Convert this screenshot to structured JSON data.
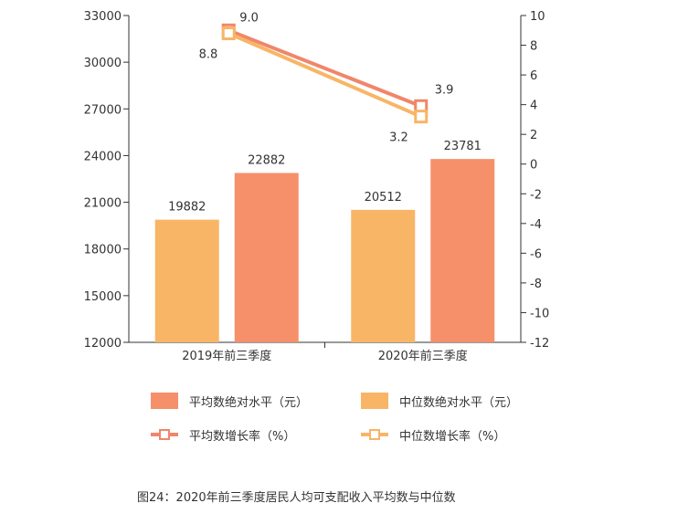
{
  "chart_data": {
    "type": "bar",
    "categories": [
      "2019年前三季度",
      "2020年前三季度"
    ],
    "y_left": {
      "min": 12000,
      "max": 33000,
      "ticks": [
        12000,
        15000,
        18000,
        21000,
        24000,
        27000,
        30000,
        33000
      ]
    },
    "y_right": {
      "min": -12,
      "max": 10,
      "ticks": [
        -12,
        -10,
        -8,
        -6,
        -4,
        -2,
        0,
        2,
        4,
        6,
        8,
        10
      ]
    },
    "bar_series": [
      {
        "name": "中位数绝对水平（元）",
        "color": "#f8b566",
        "values": [
          19882,
          20512
        ],
        "labels": [
          "19882",
          "20512"
        ]
      },
      {
        "name": "平均数绝对水平（元）",
        "color": "#f5906a",
        "values": [
          22882,
          23781
        ],
        "labels": [
          "22882",
          "23781"
        ]
      }
    ],
    "line_series": [
      {
        "name": "平均数增长率（%）",
        "color": "#f0866a",
        "values": [
          9.0,
          3.9
        ],
        "labels": [
          "9.0",
          "3.9"
        ]
      },
      {
        "name": "中位数增长率（%）",
        "color": "#f8b566",
        "values": [
          8.8,
          3.2
        ],
        "labels": [
          "8.8",
          "3.2"
        ]
      }
    ],
    "legend": [
      {
        "name": "平均数绝对水平（元）",
        "kind": "bar",
        "color": "#f5906a"
      },
      {
        "name": "中位数绝对水平（元）",
        "kind": "bar",
        "color": "#f8b566"
      },
      {
        "name": "平均数增长率（%）",
        "kind": "line",
        "color": "#f0866a"
      },
      {
        "name": "中位数增长率（%）",
        "kind": "line",
        "color": "#f8b566"
      }
    ],
    "legend_position": "bottom",
    "grid": false
  },
  "caption": "图24：2020年前三季度居民人均可支配收入平均数与中位数"
}
